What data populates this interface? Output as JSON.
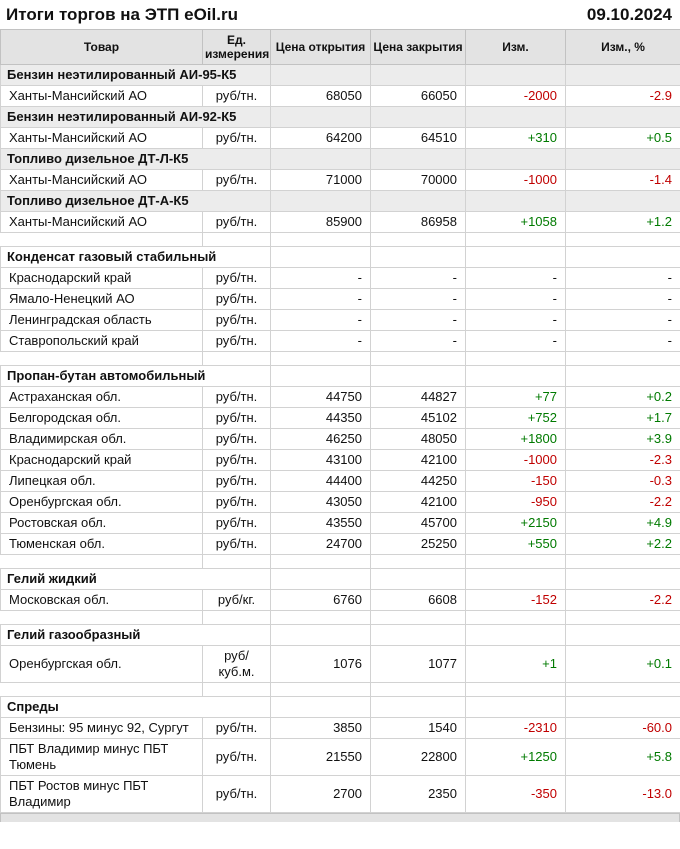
{
  "header": {
    "title": "Итоги торгов на ЭТП eOil.ru",
    "date": "09.10.2024"
  },
  "colors": {
    "positive": "#007a00",
    "negative": "#c00000",
    "header_bg": "#e3e3e3",
    "section_bg": "#ececec"
  },
  "table": {
    "columns": [
      {
        "label": "Товар"
      },
      {
        "label": "Ед. измерения"
      },
      {
        "label": "Цена открытия"
      },
      {
        "label": "Цена закрытия"
      },
      {
        "label": "Изм."
      },
      {
        "label": "Изм., %"
      }
    ],
    "rows": [
      {
        "type": "section",
        "shaded": true,
        "product": "Бензин неэтилированный АИ-95-К5"
      },
      {
        "type": "data",
        "product": "Ханты-Мансийский АО",
        "unit": "руб/тн.",
        "open": "68050",
        "close": "66050",
        "change": "-2000",
        "change_pct": "-2.9",
        "trend": "down"
      },
      {
        "type": "section",
        "shaded": true,
        "product": "Бензин неэтилированный АИ-92-К5"
      },
      {
        "type": "data",
        "product": "Ханты-Мансийский АО",
        "unit": "руб/тн.",
        "open": "64200",
        "close": "64510",
        "change": "+310",
        "change_pct": "+0.5",
        "trend": "up"
      },
      {
        "type": "section",
        "shaded": true,
        "product": "Топливо дизельное ДТ-Л-К5"
      },
      {
        "type": "data",
        "product": "Ханты-Мансийский АО",
        "unit": "руб/тн.",
        "open": "71000",
        "close": "70000",
        "change": "-1000",
        "change_pct": "-1.4",
        "trend": "down"
      },
      {
        "type": "section",
        "shaded": true,
        "product": "Топливо дизельное ДТ-А-К5"
      },
      {
        "type": "data",
        "product": "Ханты-Мансийский АО",
        "unit": "руб/тн.",
        "open": "85900",
        "close": "86958",
        "change": "+1058",
        "change_pct": "+1.2",
        "trend": "up"
      },
      {
        "type": "spacer"
      },
      {
        "type": "section",
        "shaded": false,
        "product": "Конденсат газовый стабильный"
      },
      {
        "type": "data",
        "product": "Краснодарский край",
        "unit": "руб/тн.",
        "open": "-",
        "close": "-",
        "change": "-",
        "change_pct": "-",
        "trend": "none"
      },
      {
        "type": "data",
        "product": "Ямало-Ненецкий АО",
        "unit": "руб/тн.",
        "open": "-",
        "close": "-",
        "change": "-",
        "change_pct": "-",
        "trend": "none"
      },
      {
        "type": "data",
        "product": "Ленинградская область",
        "unit": "руб/тн.",
        "open": "-",
        "close": "-",
        "change": "-",
        "change_pct": "-",
        "trend": "none"
      },
      {
        "type": "data",
        "product": "Ставропольский край",
        "unit": "руб/тн.",
        "open": "-",
        "close": "-",
        "change": "-",
        "change_pct": "-",
        "trend": "none"
      },
      {
        "type": "spacer"
      },
      {
        "type": "section",
        "shaded": false,
        "product": "Пропан-бутан автомобильный"
      },
      {
        "type": "data",
        "product": "Астраханская обл.",
        "unit": "руб/тн.",
        "open": "44750",
        "close": "44827",
        "change": "+77",
        "change_pct": "+0.2",
        "trend": "up"
      },
      {
        "type": "data",
        "product": "Белгородская обл.",
        "unit": "руб/тн.",
        "open": "44350",
        "close": "45102",
        "change": "+752",
        "change_pct": "+1.7",
        "trend": "up"
      },
      {
        "type": "data",
        "product": "Владимирская обл.",
        "unit": "руб/тн.",
        "open": "46250",
        "close": "48050",
        "change": "+1800",
        "change_pct": "+3.9",
        "trend": "up"
      },
      {
        "type": "data",
        "product": "Краснодарский край",
        "unit": "руб/тн.",
        "open": "43100",
        "close": "42100",
        "change": "-1000",
        "change_pct": "-2.3",
        "trend": "down"
      },
      {
        "type": "data",
        "product": "Липецкая обл.",
        "unit": "руб/тн.",
        "open": "44400",
        "close": "44250",
        "change": "-150",
        "change_pct": "-0.3",
        "trend": "down"
      },
      {
        "type": "data",
        "product": "Оренбургская обл.",
        "unit": "руб/тн.",
        "open": "43050",
        "close": "42100",
        "change": "-950",
        "change_pct": "-2.2",
        "trend": "down"
      },
      {
        "type": "data",
        "product": "Ростовская обл.",
        "unit": "руб/тн.",
        "open": "43550",
        "close": "45700",
        "change": "+2150",
        "change_pct": "+4.9",
        "trend": "up"
      },
      {
        "type": "data",
        "product": "Тюменская обл.",
        "unit": "руб/тн.",
        "open": "24700",
        "close": "25250",
        "change": "+550",
        "change_pct": "+2.2",
        "trend": "up"
      },
      {
        "type": "spacer"
      },
      {
        "type": "section",
        "shaded": false,
        "product": "Гелий жидкий"
      },
      {
        "type": "data",
        "product": "Московская обл.",
        "unit": "руб/кг.",
        "open": "6760",
        "close": "6608",
        "change": "-152",
        "change_pct": "-2.2",
        "trend": "down"
      },
      {
        "type": "spacer"
      },
      {
        "type": "section",
        "shaded": false,
        "product": "Гелий газообразный"
      },
      {
        "type": "data",
        "product": "Оренбургская обл.",
        "unit": "руб/куб.м.",
        "open": "1076",
        "close": "1077",
        "change": "+1",
        "change_pct": "+0.1",
        "trend": "up"
      },
      {
        "type": "spacer"
      },
      {
        "type": "section",
        "shaded": false,
        "product": "Спреды"
      },
      {
        "type": "data",
        "product": "Бензины: 95 минус 92, Сургут",
        "unit": "руб/тн.",
        "open": "3850",
        "close": "1540",
        "change": "-2310",
        "change_pct": "-60.0",
        "trend": "down"
      },
      {
        "type": "data",
        "product": "ПБТ Владимир минус ПБТ Тюмень",
        "unit": "руб/тн.",
        "open": "21550",
        "close": "22800",
        "change": "+1250",
        "change_pct": "+5.8",
        "trend": "up"
      },
      {
        "type": "data",
        "product": "ПБТ Ростов минус ПБТ Владимир",
        "unit": "руб/тн.",
        "open": "2700",
        "close": "2350",
        "change": "-350",
        "change_pct": "-13.0",
        "trend": "down"
      }
    ]
  }
}
